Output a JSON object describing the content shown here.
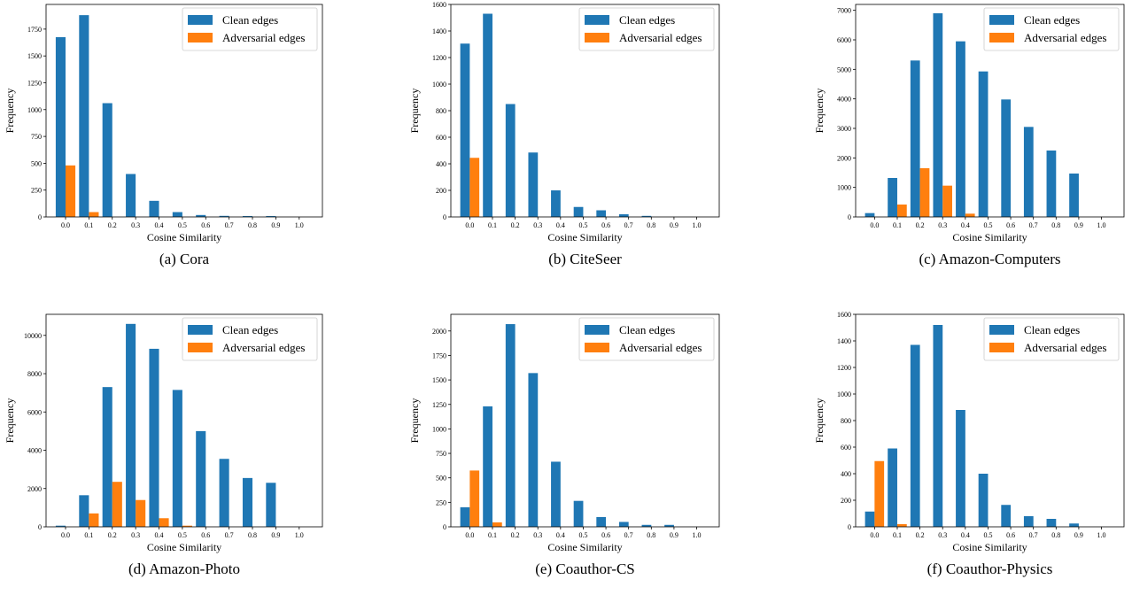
{
  "legend": {
    "clean": "Clean edges",
    "adversarial": "Adversarial edges"
  },
  "colors": {
    "clean": "#1f77b4",
    "adversarial": "#ff7f0e"
  },
  "chart_data": [
    {
      "type": "bar",
      "caption": "(a) Cora",
      "categories": [
        "0.0",
        "0.1",
        "0.2",
        "0.3",
        "0.4",
        "0.5",
        "0.6",
        "0.7",
        "0.8",
        "0.9",
        "1.0"
      ],
      "series": [
        {
          "name": "Clean edges",
          "values": [
            1675,
            1880,
            1060,
            400,
            150,
            45,
            18,
            10,
            8,
            8,
            0
          ]
        },
        {
          "name": "Adversarial edges",
          "values": [
            480,
            45,
            0,
            0,
            0,
            0,
            0,
            0,
            0,
            0,
            0
          ]
        }
      ],
      "xlabel": "Cosine Similarity",
      "ylabel": "Frequency",
      "yticks": [
        0,
        250,
        500,
        750,
        1000,
        1250,
        1500,
        1750
      ],
      "ylim": [
        0,
        1980
      ],
      "legend_position": "upper-right"
    },
    {
      "type": "bar",
      "caption": "(b) CiteSeer",
      "categories": [
        "0.0",
        "0.1",
        "0.2",
        "0.3",
        "0.4",
        "0.5",
        "0.6",
        "0.7",
        "0.8",
        "0.9",
        "1.0"
      ],
      "series": [
        {
          "name": "Clean edges",
          "values": [
            1305,
            1530,
            850,
            485,
            200,
            75,
            50,
            20,
            8,
            0,
            0
          ]
        },
        {
          "name": "Adversarial edges",
          "values": [
            445,
            0,
            0,
            0,
            0,
            0,
            0,
            0,
            0,
            0,
            0
          ]
        }
      ],
      "xlabel": "Cosine Similarity",
      "ylabel": "Frequency",
      "yticks": [
        0,
        200,
        400,
        600,
        800,
        1000,
        1200,
        1400,
        1600
      ],
      "ylim": [
        0,
        1600
      ],
      "legend_position": "upper-right"
    },
    {
      "type": "bar",
      "caption": "(c) Amazon-Computers",
      "categories": [
        "0.0",
        "0.1",
        "0.2",
        "0.3",
        "0.4",
        "0.5",
        "0.6",
        "0.7",
        "0.8",
        "0.9",
        "1.0"
      ],
      "series": [
        {
          "name": "Clean edges",
          "values": [
            130,
            1320,
            5300,
            6900,
            5950,
            4930,
            3980,
            3050,
            2250,
            1470,
            0
          ]
        },
        {
          "name": "Adversarial edges",
          "values": [
            0,
            420,
            1650,
            1060,
            110,
            0,
            0,
            0,
            0,
            0,
            0
          ]
        }
      ],
      "xlabel": "Cosine Similarity",
      "ylabel": "Frequency",
      "yticks": [
        0,
        1000,
        2000,
        3000,
        4000,
        5000,
        6000,
        7000
      ],
      "ylim": [
        0,
        7200
      ],
      "legend_position": "upper-right"
    },
    {
      "type": "bar",
      "caption": "(d) Amazon-Photo",
      "categories": [
        "0.0",
        "0.1",
        "0.2",
        "0.3",
        "0.4",
        "0.5",
        "0.6",
        "0.7",
        "0.8",
        "0.9",
        "1.0"
      ],
      "series": [
        {
          "name": "Clean edges",
          "values": [
            60,
            1650,
            7300,
            10600,
            9300,
            7150,
            5000,
            3550,
            2550,
            2300,
            0
          ]
        },
        {
          "name": "Adversarial edges",
          "values": [
            0,
            700,
            2350,
            1400,
            450,
            60,
            0,
            0,
            0,
            0,
            0
          ]
        }
      ],
      "xlabel": "Cosine Similarity",
      "ylabel": "Frequency",
      "yticks": [
        0,
        2000,
        4000,
        6000,
        8000,
        10000
      ],
      "ylim": [
        0,
        11100
      ],
      "legend_position": "upper-right"
    },
    {
      "type": "bar",
      "caption": "(e) Coauthor-CS",
      "categories": [
        "0.0",
        "0.1",
        "0.2",
        "0.3",
        "0.4",
        "0.5",
        "0.6",
        "0.7",
        "0.8",
        "0.9",
        "1.0"
      ],
      "series": [
        {
          "name": "Clean edges",
          "values": [
            200,
            1230,
            2070,
            1570,
            665,
            265,
            100,
            50,
            20,
            20,
            0
          ]
        },
        {
          "name": "Adversarial edges",
          "values": [
            575,
            45,
            0,
            0,
            0,
            0,
            0,
            0,
            0,
            0,
            0
          ]
        }
      ],
      "xlabel": "Cosine Similarity",
      "ylabel": "Frequency",
      "yticks": [
        0,
        250,
        500,
        750,
        1000,
        1250,
        1500,
        1750,
        2000
      ],
      "ylim": [
        0,
        2170
      ],
      "legend_position": "upper-right"
    },
    {
      "type": "bar",
      "caption": "(f) Coauthor-Physics",
      "categories": [
        "0.0",
        "0.1",
        "0.2",
        "0.3",
        "0.4",
        "0.5",
        "0.6",
        "0.7",
        "0.8",
        "0.9",
        "1.0"
      ],
      "series": [
        {
          "name": "Clean edges",
          "values": [
            115,
            590,
            1370,
            1520,
            880,
            400,
            165,
            80,
            60,
            25,
            0
          ]
        },
        {
          "name": "Adversarial edges",
          "values": [
            495,
            20,
            0,
            0,
            0,
            0,
            0,
            0,
            0,
            0,
            0
          ]
        }
      ],
      "xlabel": "Cosine Similarity",
      "ylabel": "Frequency",
      "yticks": [
        0,
        200,
        400,
        600,
        800,
        1000,
        1200,
        1400,
        1600
      ],
      "ylim": [
        0,
        1600
      ],
      "legend_position": "upper-right"
    }
  ]
}
